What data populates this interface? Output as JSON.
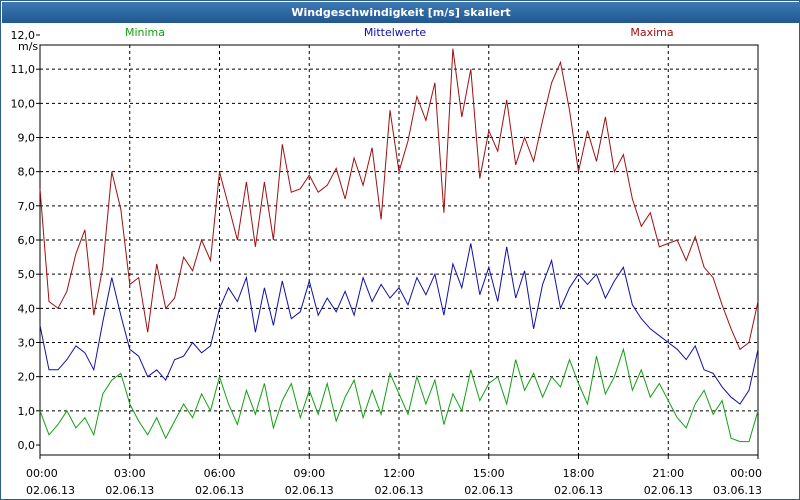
{
  "window": {
    "title": "Windgeschwindigkeit [m/s] skaliert"
  },
  "chart_data": {
    "type": "line",
    "title": "Windgeschwindigkeit [m/s] skaliert",
    "ylabel": "m/s",
    "ylim": [
      0,
      12
    ],
    "y_ticks": [
      "0,0",
      "1,0",
      "2,0",
      "3,0",
      "4,0",
      "5,0",
      "6,0",
      "7,0",
      "8,0",
      "9,0",
      "10,0",
      "11,0",
      "12,0"
    ],
    "xlim_hours": [
      0,
      24
    ],
    "x_ticks": [
      {
        "time": "00:00",
        "date": "02.06.13"
      },
      {
        "time": "03:00",
        "date": "02.06.13"
      },
      {
        "time": "06:00",
        "date": "02.06.13"
      },
      {
        "time": "09:00",
        "date": "02.06.13"
      },
      {
        "time": "12:00",
        "date": "02.06.13"
      },
      {
        "time": "15:00",
        "date": "02.06.13"
      },
      {
        "time": "18:00",
        "date": "02.06.13"
      },
      {
        "time": "21:00",
        "date": "02.06.13"
      },
      {
        "time": "00:00",
        "date": "03.06.13"
      }
    ],
    "grid": true,
    "legend_position": "top",
    "x_hours": [
      0,
      0.3,
      0.6,
      0.9,
      1.2,
      1.5,
      1.8,
      2.1,
      2.4,
      2.7,
      3.0,
      3.3,
      3.6,
      3.9,
      4.2,
      4.5,
      4.8,
      5.1,
      5.4,
      5.7,
      6.0,
      6.3,
      6.6,
      6.9,
      7.2,
      7.5,
      7.8,
      8.1,
      8.4,
      8.7,
      9.0,
      9.3,
      9.6,
      9.9,
      10.2,
      10.5,
      10.8,
      11.1,
      11.4,
      11.7,
      12.0,
      12.3,
      12.6,
      12.9,
      13.2,
      13.5,
      13.8,
      14.1,
      14.4,
      14.7,
      15.0,
      15.3,
      15.6,
      15.9,
      16.2,
      16.5,
      16.8,
      17.1,
      17.4,
      17.7,
      18.0,
      18.3,
      18.6,
      18.9,
      19.2,
      19.5,
      19.8,
      20.1,
      20.4,
      20.7,
      21.0,
      21.3,
      21.6,
      21.9,
      22.2,
      22.5,
      22.8,
      23.1,
      23.4,
      23.7,
      24.0
    ],
    "series": [
      {
        "name": "Minima",
        "color": "#12a012",
        "values": [
          1.0,
          0.3,
          0.6,
          1.0,
          0.5,
          0.8,
          0.3,
          1.5,
          1.9,
          2.1,
          1.2,
          0.7,
          0.3,
          0.8,
          0.2,
          0.7,
          1.2,
          0.8,
          1.5,
          1.0,
          2.0,
          1.2,
          0.6,
          1.6,
          0.9,
          1.8,
          0.5,
          1.3,
          1.8,
          0.8,
          1.6,
          0.9,
          1.8,
          0.7,
          1.4,
          1.9,
          0.8,
          1.6,
          0.9,
          2.1,
          1.5,
          0.9,
          2.0,
          1.2,
          1.9,
          0.6,
          1.5,
          1.0,
          2.2,
          1.3,
          1.8,
          2.0,
          1.2,
          2.5,
          1.6,
          2.1,
          1.4,
          2.0,
          1.7,
          2.5,
          1.8,
          1.2,
          2.6,
          1.5,
          2.0,
          2.8,
          1.6,
          2.2,
          1.4,
          1.8,
          1.3,
          0.8,
          0.5,
          1.2,
          1.6,
          0.9,
          1.3,
          0.2,
          0.1,
          0.1,
          1.0
        ]
      },
      {
        "name": "Mittelwerte",
        "color": "#1010a8",
        "values": [
          3.5,
          2.2,
          2.2,
          2.5,
          2.9,
          2.7,
          2.2,
          3.6,
          4.9,
          3.8,
          2.8,
          2.6,
          2.0,
          2.2,
          1.9,
          2.5,
          2.6,
          3.0,
          2.7,
          2.9,
          4.0,
          4.6,
          4.2,
          4.9,
          3.3,
          4.6,
          3.5,
          4.8,
          3.7,
          3.9,
          4.8,
          3.8,
          4.3,
          3.9,
          4.5,
          3.8,
          4.9,
          4.2,
          4.7,
          4.3,
          4.6,
          4.1,
          4.9,
          4.4,
          5.0,
          3.8,
          5.3,
          4.6,
          5.9,
          4.4,
          5.2,
          4.2,
          5.8,
          4.3,
          5.1,
          3.4,
          4.7,
          5.4,
          4.0,
          4.6,
          5.0,
          4.7,
          5.0,
          4.3,
          4.8,
          5.2,
          4.1,
          3.7,
          3.4,
          3.2,
          3.0,
          2.8,
          2.5,
          2.9,
          2.2,
          2.1,
          1.7,
          1.4,
          1.2,
          1.6,
          2.8
        ]
      },
      {
        "name": "Maxima",
        "color": "#a01010",
        "values": [
          7.5,
          4.2,
          4.0,
          4.5,
          5.6,
          6.3,
          3.8,
          5.2,
          8.0,
          6.9,
          4.7,
          4.9,
          3.3,
          5.3,
          4.0,
          4.3,
          5.5,
          5.1,
          6.0,
          5.4,
          8.0,
          7.0,
          6.0,
          7.7,
          5.8,
          7.7,
          6.0,
          8.8,
          7.4,
          7.5,
          7.9,
          7.4,
          7.6,
          8.1,
          7.2,
          8.4,
          7.6,
          8.7,
          6.6,
          9.8,
          8.0,
          8.9,
          10.2,
          9.5,
          10.6,
          6.8,
          11.6,
          9.6,
          11.0,
          7.8,
          9.2,
          8.6,
          10.1,
          8.2,
          9.0,
          8.3,
          9.5,
          10.6,
          11.2,
          9.8,
          8.0,
          9.2,
          8.3,
          9.6,
          8.0,
          8.5,
          7.2,
          6.4,
          6.8,
          5.8,
          5.9,
          6.0,
          5.4,
          6.1,
          5.2,
          4.9,
          4.1,
          3.4,
          2.8,
          3.0,
          4.2
        ]
      }
    ]
  }
}
